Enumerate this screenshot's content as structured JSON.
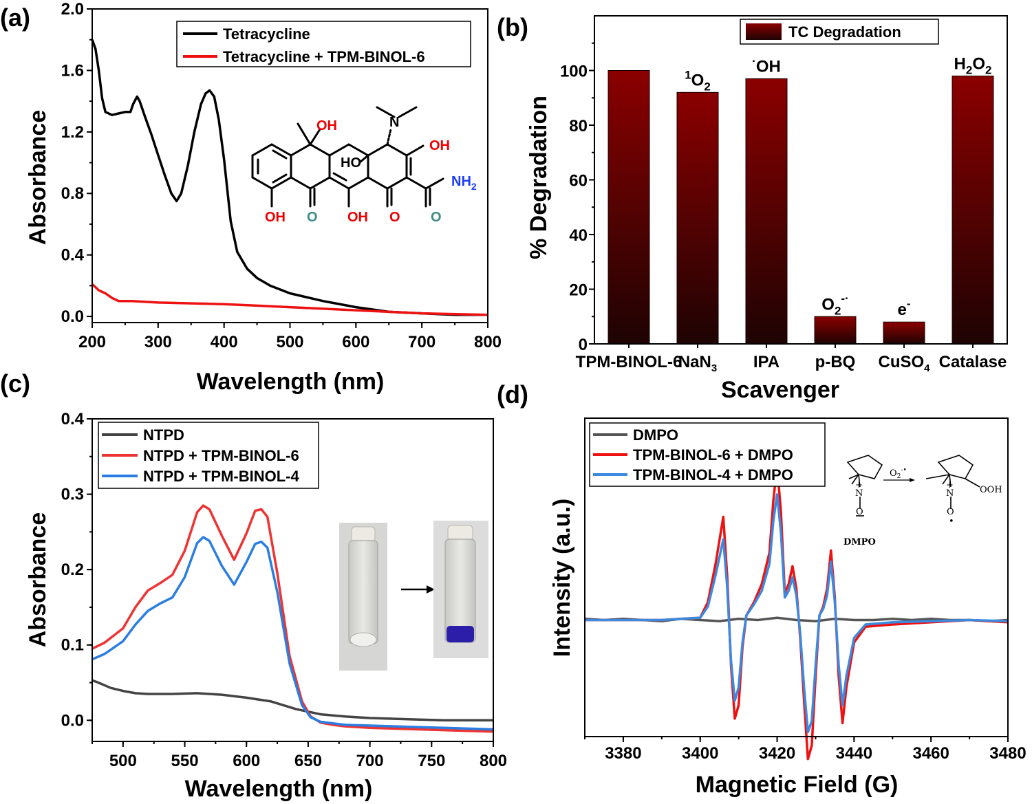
{
  "panels": {
    "a": {
      "label": "(a)",
      "chart_data": {
        "type": "line",
        "xlabel": "Wavelength (nm)",
        "ylabel": "Absorbance",
        "xlim": [
          200,
          800
        ],
        "ylim": [
          -0.04,
          2.0
        ],
        "xticks": [
          "200",
          "300",
          "400",
          "500",
          "600",
          "700",
          "800"
        ],
        "yticks": [
          "0.0",
          "0.4",
          "0.8",
          "1.2",
          "1.6",
          "2.0"
        ],
        "legend_position": "top-right",
        "series": [
          {
            "name": "Tetracycline",
            "color": "#000000",
            "x": [
              200,
              205,
              210,
              215,
              220,
              230,
              240,
              250,
              258,
              262,
              268,
              272,
              280,
              290,
              300,
              310,
              320,
              328,
              335,
              345,
              355,
              365,
              372,
              378,
              385,
              392,
              400,
              410,
              420,
              435,
              450,
              470,
              500,
              550,
              600,
              650,
              700,
              750,
              800
            ],
            "y": [
              1.8,
              1.74,
              1.6,
              1.42,
              1.33,
              1.31,
              1.32,
              1.33,
              1.33,
              1.38,
              1.43,
              1.4,
              1.3,
              1.18,
              1.05,
              0.92,
              0.8,
              0.75,
              0.8,
              0.98,
              1.2,
              1.38,
              1.45,
              1.47,
              1.43,
              1.28,
              1.02,
              0.62,
              0.42,
              0.31,
              0.25,
              0.2,
              0.15,
              0.1,
              0.06,
              0.03,
              0.02,
              0.01,
              0.01
            ]
          },
          {
            "name": "Tetracycline + TPM-BINOL-6",
            "color": "#ee1111",
            "x": [
              200,
              205,
              210,
              220,
              230,
              240,
              250,
              260,
              300,
              400,
              500,
              600,
              700,
              800
            ],
            "y": [
              0.21,
              0.19,
              0.17,
              0.15,
              0.12,
              0.1,
              0.1,
              0.1,
              0.09,
              0.08,
              0.06,
              0.04,
              0.02,
              0.01
            ]
          }
        ]
      },
      "molecule": {
        "labels": {
          "oh_top": "OH",
          "oh_right": "OH",
          "ho": "HO",
          "n": "N",
          "nh2": "NH",
          "nh2_sub": "2",
          "oh_bl": "OH",
          "o1": "O",
          "oh_bm": "OH",
          "o2": "O",
          "o3": "O"
        },
        "colors": {
          "oh": "#ee0000",
          "amide_n": "#1a3cff",
          "carbonyl": "#3f8a8a",
          "bond": "#000000"
        }
      }
    },
    "b": {
      "label": "(b)",
      "chart_data": {
        "type": "bar",
        "xlabel": "Scavenger",
        "ylabel": "% Degradation",
        "ylim": [
          0,
          120
        ],
        "yticks": [
          "0",
          "20",
          "40",
          "60",
          "80",
          "100"
        ],
        "legend": "TC Degradation",
        "legend_position": "top-right",
        "bar_color_top": "#8b0000",
        "bar_color_bottom": "#1e0303",
        "categories": [
          "TPM-BINOL-6",
          "NaN",
          "IPA",
          "p-BQ",
          "CuSO",
          "Catalase"
        ],
        "category_subscripts": [
          "",
          "3",
          "",
          "",
          "4",
          ""
        ],
        "values": [
          100,
          92,
          97,
          10,
          8,
          98
        ],
        "bar_annotations": [
          {
            "main": "",
            "pre_sup": "",
            "sub": "",
            "sup": "",
            "main2": "",
            "sub2": ""
          },
          {
            "main": "O",
            "pre_sup": "1",
            "sub": "2",
            "sup": "",
            "main2": "",
            "sub2": ""
          },
          {
            "main": "OH",
            "pre_sup": "·",
            "sub": "",
            "sup": "",
            "main2": "",
            "sub2": ""
          },
          {
            "main": "O",
            "pre_sup": "",
            "sub": "2",
            "sup": "-·",
            "main2": "",
            "sub2": ""
          },
          {
            "main": "e",
            "pre_sup": "",
            "sub": "",
            "sup": "-",
            "main2": "",
            "sub2": ""
          },
          {
            "main": "H",
            "pre_sup": "",
            "sub": "2",
            "sup": "",
            "main2": "O",
            "sub2": "2"
          }
        ]
      }
    },
    "c": {
      "label": "(c)",
      "chart_data": {
        "type": "line",
        "xlabel": "Wavelength (nm)",
        "ylabel": "Absorbance",
        "xlim": [
          475,
          800
        ],
        "ylim": [
          -0.028,
          0.4
        ],
        "xticks": [
          "500",
          "550",
          "600",
          "650",
          "700",
          "750",
          "800"
        ],
        "yticks": [
          "0.0",
          "0.1",
          "0.2",
          "0.3",
          "0.4"
        ],
        "legend_position": "top-left",
        "series": [
          {
            "name": "NTPD",
            "color": "#444444",
            "x": [
              475,
              480,
              490,
              500,
              510,
              520,
              540,
              560,
              580,
              600,
              620,
              640,
              660,
              680,
              700,
              720,
              740,
              760,
              780,
              800
            ],
            "y": [
              0.053,
              0.05,
              0.043,
              0.039,
              0.036,
              0.035,
              0.035,
              0.036,
              0.034,
              0.03,
              0.025,
              0.015,
              0.008,
              0.005,
              0.003,
              0.002,
              0.001,
              0.0,
              0.0,
              0.0
            ]
          },
          {
            "name": "NTPD + TPM-BINOL-6",
            "color": "#ee3333",
            "x": [
              475,
              485,
              500,
              510,
              520,
              530,
              540,
              550,
              560,
              565,
              570,
              580,
              590,
              600,
              607,
              612,
              617,
              625,
              635,
              645,
              652,
              660,
              670,
              680,
              700,
              720,
              740,
              760,
              780,
              800
            ],
            "y": [
              0.095,
              0.103,
              0.122,
              0.15,
              0.172,
              0.182,
              0.193,
              0.225,
              0.276,
              0.285,
              0.28,
              0.245,
              0.213,
              0.248,
              0.278,
              0.28,
              0.27,
              0.195,
              0.085,
              0.025,
              0.005,
              -0.003,
              -0.006,
              -0.008,
              -0.01,
              -0.011,
              -0.012,
              -0.013,
              -0.014,
              -0.015
            ]
          },
          {
            "name": "NTPD + TPM-BINOL-4",
            "color": "#2a7de1",
            "x": [
              475,
              485,
              500,
              510,
              520,
              530,
              540,
              550,
              560,
              565,
              570,
              580,
              590,
              600,
              607,
              612,
              617,
              625,
              635,
              645,
              652,
              660,
              670,
              680,
              700,
              720,
              740,
              760,
              780,
              800
            ],
            "y": [
              0.081,
              0.088,
              0.105,
              0.127,
              0.145,
              0.155,
              0.163,
              0.19,
              0.235,
              0.243,
              0.238,
              0.205,
              0.18,
              0.21,
              0.234,
              0.237,
              0.229,
              0.17,
              0.075,
              0.02,
              0.004,
              -0.002,
              -0.004,
              -0.006,
              -0.007,
              -0.008,
              -0.009,
              -0.01,
              -0.011,
              -0.012
            ]
          }
        ]
      }
    },
    "d": {
      "label": "(d)",
      "chart_data": {
        "type": "line",
        "xlabel": "Magnetic Field (G)",
        "ylabel": "Intensity (a.u.)",
        "xlim": [
          3370,
          3480
        ],
        "ylim": [
          -5.2,
          9.0
        ],
        "xticks": [
          "3380",
          "3400",
          "3420",
          "3440",
          "3460",
          "3480"
        ],
        "legend_position": "top-left",
        "series": [
          {
            "name": "DMPO",
            "color": "#555555",
            "x": [
              3370,
              3375,
              3380,
              3385,
              3390,
              3395,
              3400,
              3405,
              3410,
              3415,
              3420,
              3425,
              3430,
              3435,
              3440,
              3445,
              3450,
              3455,
              3460,
              3465,
              3470,
              3475,
              3480
            ],
            "y": [
              0.05,
              0.0,
              0.05,
              0.0,
              -0.05,
              0.05,
              0.0,
              -0.05,
              0.05,
              0.0,
              0.1,
              0.0,
              -0.05,
              0.05,
              0.0,
              0.0,
              0.05,
              0.0,
              0.05,
              0.0,
              0.0,
              -0.05,
              0.0
            ]
          },
          {
            "name": "TPM-BINOL-6 + DMPO",
            "color": "#ee1111",
            "x": [
              3370,
              3380,
              3390,
              3395,
              3400,
              3402,
              3404,
              3406,
              3407,
              3408,
              3409,
              3410,
              3411,
              3412,
              3414,
              3416,
              3418,
              3419,
              3420,
              3421,
              3422,
              3423,
              3424,
              3425,
              3426,
              3427,
              3428,
              3429,
              3430,
              3431,
              3432,
              3433,
              3434,
              3435,
              3436,
              3437,
              3438,
              3440,
              3443,
              3450,
              3460,
              3470,
              3480
            ],
            "y": [
              0.0,
              0.0,
              0.0,
              0.05,
              0.1,
              0.8,
              2.5,
              4.6,
              2.0,
              -2.0,
              -4.4,
              -3.8,
              -1.2,
              0.2,
              0.8,
              1.6,
              3.0,
              5.3,
              6.9,
              4.8,
              1.2,
              1.6,
              2.4,
              1.4,
              -0.8,
              -3.6,
              -6.2,
              -5.6,
              -2.5,
              0.2,
              0.6,
              1.4,
              3.1,
              1.0,
              -2.5,
              -4.6,
              -3.0,
              -1.0,
              -0.3,
              -0.2,
              -0.1,
              0.0,
              -0.1
            ]
          },
          {
            "name": "TPM-BINOL-4 + DMPO",
            "color": "#3c8ae0",
            "x": [
              3370,
              3380,
              3390,
              3395,
              3400,
              3402,
              3404,
              3406,
              3407,
              3408,
              3409,
              3410,
              3411,
              3412,
              3414,
              3416,
              3418,
              3419,
              3420,
              3421,
              3422,
              3423,
              3424,
              3425,
              3426,
              3427,
              3428,
              3429,
              3430,
              3431,
              3432,
              3433,
              3434,
              3435,
              3436,
              3437,
              3438,
              3440,
              3443,
              3450,
              3460,
              3470,
              3480
            ],
            "y": [
              0.0,
              0.0,
              0.0,
              0.05,
              0.1,
              0.6,
              2.0,
              3.6,
              1.5,
              -1.8,
              -3.6,
              -3.0,
              -1.0,
              0.2,
              0.7,
              1.3,
              2.5,
              4.4,
              5.6,
              3.9,
              1.0,
              1.3,
              1.9,
              1.1,
              -0.6,
              -3.0,
              -5.0,
              -4.5,
              -2.0,
              0.2,
              0.5,
              1.1,
              2.6,
              0.8,
              -2.0,
              -3.8,
              -2.5,
              -0.8,
              -0.2,
              -0.1,
              -0.05,
              0.0,
              -0.05
            ]
          }
        ]
      },
      "scheme": {
        "o2_label": "O",
        "o2_sub": "2",
        "o2_sup": "-•",
        "plus": "+",
        "n_left": "N",
        "o_left": "O",
        "n_right": "N",
        "o_right": "O",
        "ooh": "OOH",
        "dot": "•",
        "caption": "DMPO"
      }
    }
  }
}
